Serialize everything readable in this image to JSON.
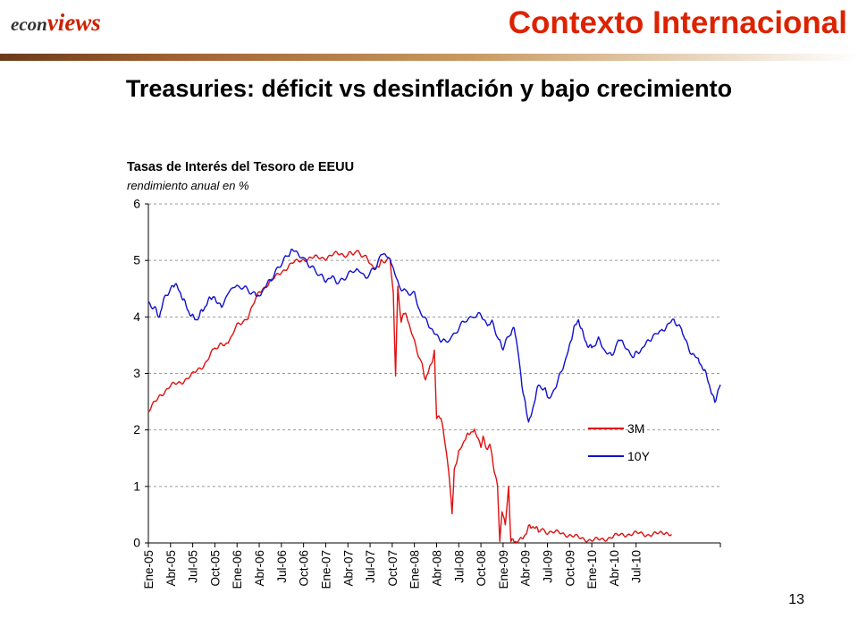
{
  "brand": {
    "part1": "econ",
    "part2": "views"
  },
  "header": {
    "title": "Contexto Internacional"
  },
  "slide": {
    "title": "Treasuries: déficit vs desinflación y bajo crecimiento",
    "page_number": "13"
  },
  "chart_data": {
    "type": "line",
    "title": "Tasas de Interés del Tesoro de EEUU",
    "subtitle": "rendimiento anual en %",
    "x_categories": [
      "Ene-05",
      "Abr-05",
      "Jul-05",
      "Oct-05",
      "Ene-06",
      "Abr-06",
      "Jul-06",
      "Oct-06",
      "Ene-07",
      "Abr-07",
      "Jul-07",
      "Oct-07",
      "Ene-08",
      "Abr-08",
      "Jul-08",
      "Oct-08",
      "Ene-09",
      "Abr-09",
      "Jul-09",
      "Oct-09",
      "Ene-10",
      "Abr-10",
      "Jul-10"
    ],
    "ylim": [
      0,
      6
    ],
    "yticks": [
      0,
      1,
      2,
      3,
      4,
      5,
      6
    ],
    "grid": true,
    "legend_position": "right-bottom inside",
    "series": [
      {
        "name": "3M",
        "color": "#e01010",
        "points": [
          [
            0,
            2.32
          ],
          [
            0.5,
            2.6
          ],
          [
            1,
            2.78
          ],
          [
            1.5,
            2.85
          ],
          [
            2,
            2.98
          ],
          [
            2.5,
            3.15
          ],
          [
            3,
            3.45
          ],
          [
            3.3,
            3.5
          ],
          [
            3.6,
            3.55
          ],
          [
            4,
            3.85
          ],
          [
            4.5,
            4.0
          ],
          [
            5,
            4.45
          ],
          [
            5.5,
            4.62
          ],
          [
            6,
            4.8
          ],
          [
            6.5,
            4.95
          ],
          [
            7,
            5.02
          ],
          [
            7.5,
            5.05
          ],
          [
            8,
            5.05
          ],
          [
            8.5,
            5.12
          ],
          [
            9,
            5.1
          ],
          [
            9.3,
            5.15
          ],
          [
            9.7,
            5.1
          ],
          [
            10,
            4.95
          ],
          [
            10.3,
            4.85
          ],
          [
            10.5,
            5.0
          ],
          [
            10.9,
            5.0
          ],
          [
            11.05,
            4.4
          ],
          [
            11.15,
            3.0
          ],
          [
            11.25,
            4.5
          ],
          [
            11.4,
            3.9
          ],
          [
            11.5,
            4.1
          ],
          [
            11.7,
            3.95
          ],
          [
            12,
            3.55
          ],
          [
            12.3,
            3.2
          ],
          [
            12.5,
            2.9
          ],
          [
            12.75,
            3.15
          ],
          [
            12.9,
            3.4
          ],
          [
            13.0,
            2.2
          ],
          [
            13.2,
            2.25
          ],
          [
            13.4,
            1.7
          ],
          [
            13.55,
            1.3
          ],
          [
            13.7,
            0.5
          ],
          [
            13.8,
            1.3
          ],
          [
            14.0,
            1.6
          ],
          [
            14.3,
            1.85
          ],
          [
            14.5,
            1.95
          ],
          [
            14.7,
            2.0
          ],
          [
            15.0,
            1.7
          ],
          [
            15.1,
            1.85
          ],
          [
            15.3,
            1.65
          ],
          [
            15.4,
            1.75
          ],
          [
            15.6,
            1.3
          ],
          [
            15.75,
            1.0
          ],
          [
            15.85,
            0.0
          ],
          [
            15.95,
            0.6
          ],
          [
            16.1,
            0.3
          ],
          [
            16.25,
            1.0
          ],
          [
            16.35,
            0.05
          ],
          [
            16.5,
            0.02
          ],
          [
            16.8,
            0.05
          ],
          [
            17.0,
            0.15
          ],
          [
            17.2,
            0.3
          ],
          [
            17.4,
            0.28
          ],
          [
            17.6,
            0.22
          ],
          [
            18,
            0.2
          ],
          [
            18.5,
            0.18
          ],
          [
            19,
            0.14
          ],
          [
            19.5,
            0.08
          ],
          [
            20,
            0.05
          ],
          [
            20.5,
            0.06
          ],
          [
            21,
            0.12
          ],
          [
            21.5,
            0.15
          ],
          [
            22,
            0.17
          ],
          [
            22.5,
            0.15
          ],
          [
            23,
            0.16
          ],
          [
            23.6,
            0.15
          ]
        ]
      },
      {
        "name": "10Y",
        "color": "#1010cc",
        "points": [
          [
            0,
            4.25
          ],
          [
            0.3,
            4.15
          ],
          [
            0.5,
            4.0
          ],
          [
            0.7,
            4.3
          ],
          [
            1,
            4.5
          ],
          [
            1.2,
            4.6
          ],
          [
            1.4,
            4.45
          ],
          [
            1.6,
            4.3
          ],
          [
            1.8,
            4.1
          ],
          [
            2,
            4.0
          ],
          [
            2.2,
            3.95
          ],
          [
            2.4,
            4.1
          ],
          [
            2.6,
            4.2
          ],
          [
            2.8,
            4.35
          ],
          [
            3,
            4.35
          ],
          [
            3.3,
            4.15
          ],
          [
            3.6,
            4.45
          ],
          [
            4,
            4.55
          ],
          [
            4.4,
            4.5
          ],
          [
            4.8,
            4.4
          ],
          [
            5,
            4.38
          ],
          [
            5.3,
            4.55
          ],
          [
            5.6,
            4.7
          ],
          [
            6,
            4.95
          ],
          [
            6.3,
            5.1
          ],
          [
            6.5,
            5.18
          ],
          [
            7,
            5.05
          ],
          [
            7.3,
            4.9
          ],
          [
            7.7,
            4.75
          ],
          [
            8,
            4.65
          ],
          [
            8.3,
            4.7
          ],
          [
            8.6,
            4.6
          ],
          [
            9,
            4.75
          ],
          [
            9.4,
            4.85
          ],
          [
            9.8,
            4.7
          ],
          [
            10.2,
            4.85
          ],
          [
            10.5,
            5.1
          ],
          [
            10.8,
            5.1
          ],
          [
            11,
            4.9
          ],
          [
            11.3,
            4.55
          ],
          [
            11.6,
            4.45
          ],
          [
            12,
            4.4
          ],
          [
            12.3,
            4.05
          ],
          [
            12.6,
            3.9
          ],
          [
            12.9,
            3.7
          ],
          [
            13.2,
            3.6
          ],
          [
            13.5,
            3.55
          ],
          [
            13.9,
            3.75
          ],
          [
            14.3,
            3.95
          ],
          [
            14.7,
            4.0
          ],
          [
            15,
            4.05
          ],
          [
            15.3,
            3.85
          ],
          [
            15.5,
            3.9
          ],
          [
            15.8,
            3.6
          ],
          [
            16.0,
            3.45
          ],
          [
            16.3,
            3.7
          ],
          [
            16.5,
            3.8
          ],
          [
            16.7,
            3.35
          ],
          [
            16.85,
            2.75
          ],
          [
            17.0,
            2.5
          ],
          [
            17.15,
            2.1
          ],
          [
            17.35,
            2.4
          ],
          [
            17.6,
            2.8
          ],
          [
            17.9,
            2.7
          ],
          [
            18.1,
            2.55
          ],
          [
            18.4,
            2.8
          ],
          [
            18.7,
            3.1
          ],
          [
            19.0,
            3.5
          ],
          [
            19.2,
            3.8
          ],
          [
            19.4,
            3.95
          ],
          [
            19.6,
            3.7
          ],
          [
            19.8,
            3.5
          ],
          [
            20.0,
            3.45
          ],
          [
            20.3,
            3.6
          ],
          [
            20.6,
            3.4
          ],
          [
            20.9,
            3.3
          ],
          [
            21.2,
            3.6
          ],
          [
            21.5,
            3.5
          ],
          [
            21.8,
            3.3
          ],
          [
            22.0,
            3.35
          ],
          [
            22.3,
            3.45
          ],
          [
            22.6,
            3.6
          ],
          [
            22.9,
            3.7
          ],
          [
            23.1,
            3.72
          ],
          [
            23.4,
            3.85
          ],
          [
            23.7,
            3.95
          ],
          [
            24.0,
            3.8
          ],
          [
            24.2,
            3.6
          ],
          [
            24.5,
            3.35
          ],
          [
            24.8,
            3.25
          ],
          [
            25.0,
            3.1
          ],
          [
            25.2,
            2.95
          ],
          [
            25.4,
            2.65
          ],
          [
            25.55,
            2.5
          ],
          [
            25.7,
            2.7
          ],
          [
            25.8,
            2.8
          ]
        ]
      }
    ]
  }
}
